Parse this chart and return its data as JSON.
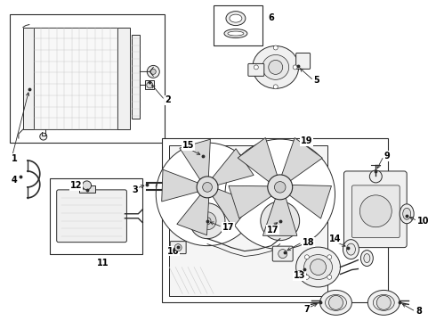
{
  "bg_color": "#ffffff",
  "lc": "#2a2a2a",
  "fig_width": 4.9,
  "fig_height": 3.6,
  "dpi": 100,
  "label_fs": 7.0
}
